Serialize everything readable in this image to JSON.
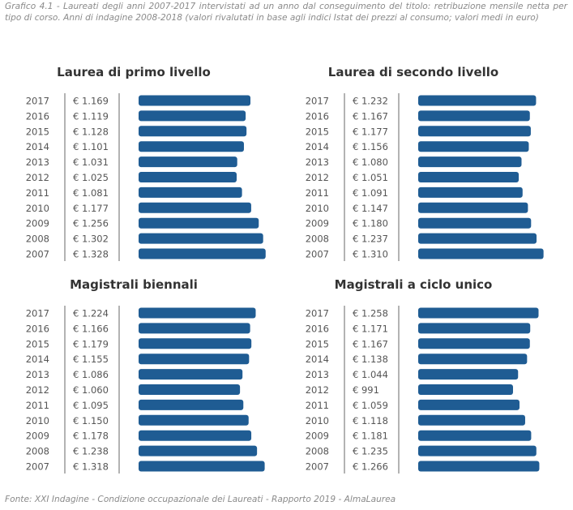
{
  "caption": "Grafico 4.1 - Laureati degli anni 2007-2017 intervistati ad un anno dal conseguimento del titolo: retribuzione mensile netta per tipo di corso. Anni di indagine 2008-2018 (valori rivalutati in base agli indici Istat dei prezzi al consumo; valori medi in euro)",
  "source": "Fonte: XXI Indagine - Condizione occupazionale dei Laureati - Rapporto 2019 - AlmaLaurea",
  "colors": {
    "bar": "#1f5c93"
  },
  "chart_data": [
    {
      "type": "bar",
      "title": "Laurea di primo livello",
      "categories": [
        "2017",
        "2016",
        "2015",
        "2014",
        "2013",
        "2012",
        "2011",
        "2010",
        "2009",
        "2008",
        "2007"
      ],
      "values": [
        1169,
        1119,
        1128,
        1101,
        1031,
        1025,
        1081,
        1177,
        1256,
        1302,
        1328
      ],
      "value_labels": [
        "€ 1.169",
        "€ 1.119",
        "€ 1.128",
        "€ 1.101",
        "€ 1.031",
        "€ 1.025",
        "€ 1.081",
        "€ 1.177",
        "€ 1.256",
        "€ 1.302",
        "€ 1.328"
      ]
    },
    {
      "type": "bar",
      "title": "Laurea di secondo livello",
      "categories": [
        "2017",
        "2016",
        "2015",
        "2014",
        "2013",
        "2012",
        "2011",
        "2010",
        "2009",
        "2008",
        "2007"
      ],
      "values": [
        1232,
        1167,
        1177,
        1156,
        1080,
        1051,
        1091,
        1147,
        1180,
        1237,
        1310
      ],
      "value_labels": [
        "€ 1.232",
        "€ 1.167",
        "€ 1.177",
        "€ 1.156",
        "€ 1.080",
        "€ 1.051",
        "€ 1.091",
        "€ 1.147",
        "€ 1.180",
        "€ 1.237",
        "€ 1.310"
      ]
    },
    {
      "type": "bar",
      "title": "Magistrali biennali",
      "categories": [
        "2017",
        "2016",
        "2015",
        "2014",
        "2013",
        "2012",
        "2011",
        "2010",
        "2009",
        "2008",
        "2007"
      ],
      "values": [
        1224,
        1166,
        1179,
        1155,
        1086,
        1060,
        1095,
        1150,
        1178,
        1238,
        1318
      ],
      "value_labels": [
        "€ 1.224",
        "€ 1.166",
        "€ 1.179",
        "€ 1.155",
        "€ 1.086",
        "€ 1.060",
        "€ 1.095",
        "€ 1.150",
        "€ 1.178",
        "€ 1.238",
        "€ 1.318"
      ]
    },
    {
      "type": "bar",
      "title": "Magistrali a ciclo unico",
      "categories": [
        "2017",
        "2016",
        "2015",
        "2014",
        "2013",
        "2012",
        "2011",
        "2010",
        "2009",
        "2008",
        "2007"
      ],
      "values": [
        1258,
        1171,
        1167,
        1138,
        1044,
        991,
        1059,
        1118,
        1181,
        1235,
        1266
      ],
      "value_labels": [
        "€ 1.258",
        "€ 1.171",
        "€ 1.167",
        "€ 1.138",
        "€ 1.044",
        "€ 991",
        "€ 1.059",
        "€ 1.118",
        "€ 1.181",
        "€ 1.235",
        "€ 1.266"
      ]
    }
  ]
}
